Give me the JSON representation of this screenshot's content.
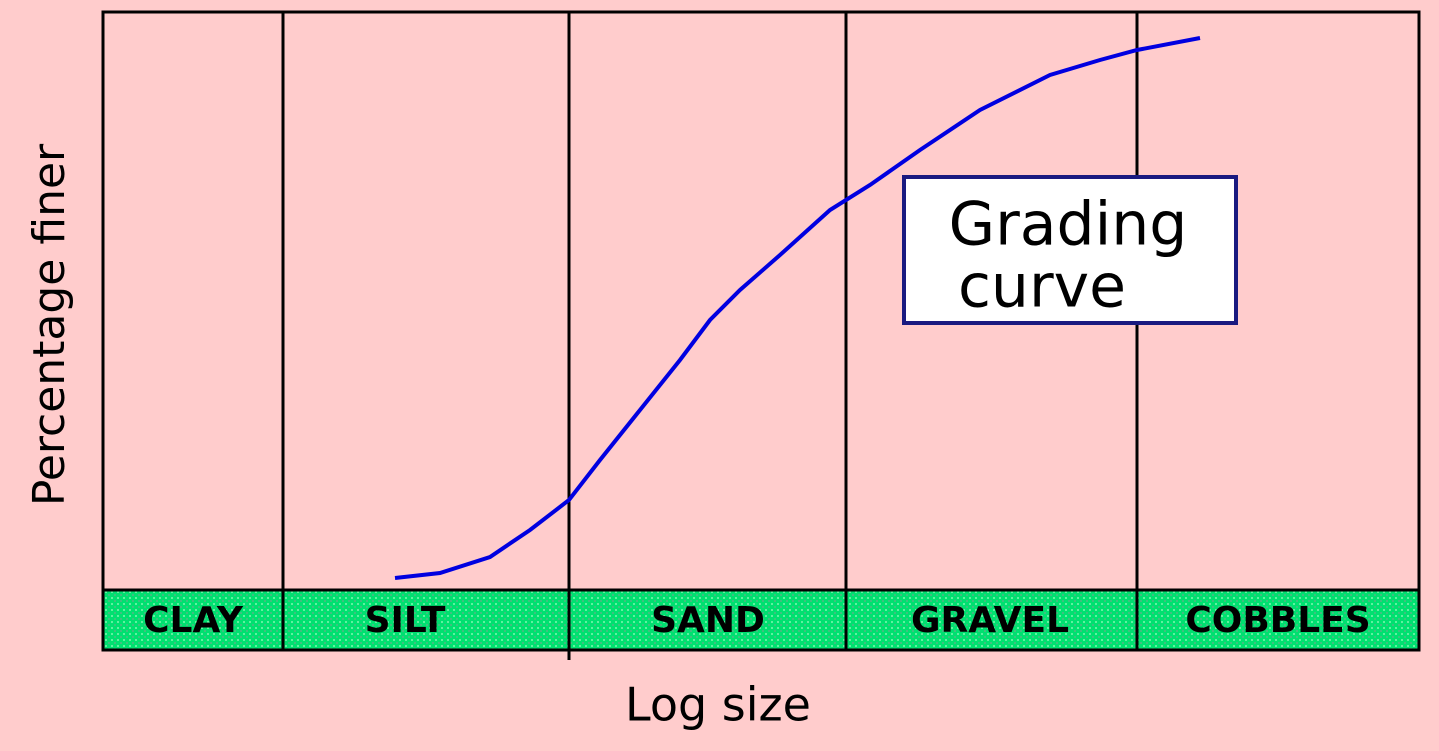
{
  "y_axis_label": "Percentage finer",
  "x_axis_label": "Log size",
  "bands": [
    "CLAY",
    "SILT",
    "SAND",
    "GRAVEL",
    "COBBLES"
  ],
  "annotation": {
    "lines": [
      "Grading",
      "curve"
    ]
  }
}
